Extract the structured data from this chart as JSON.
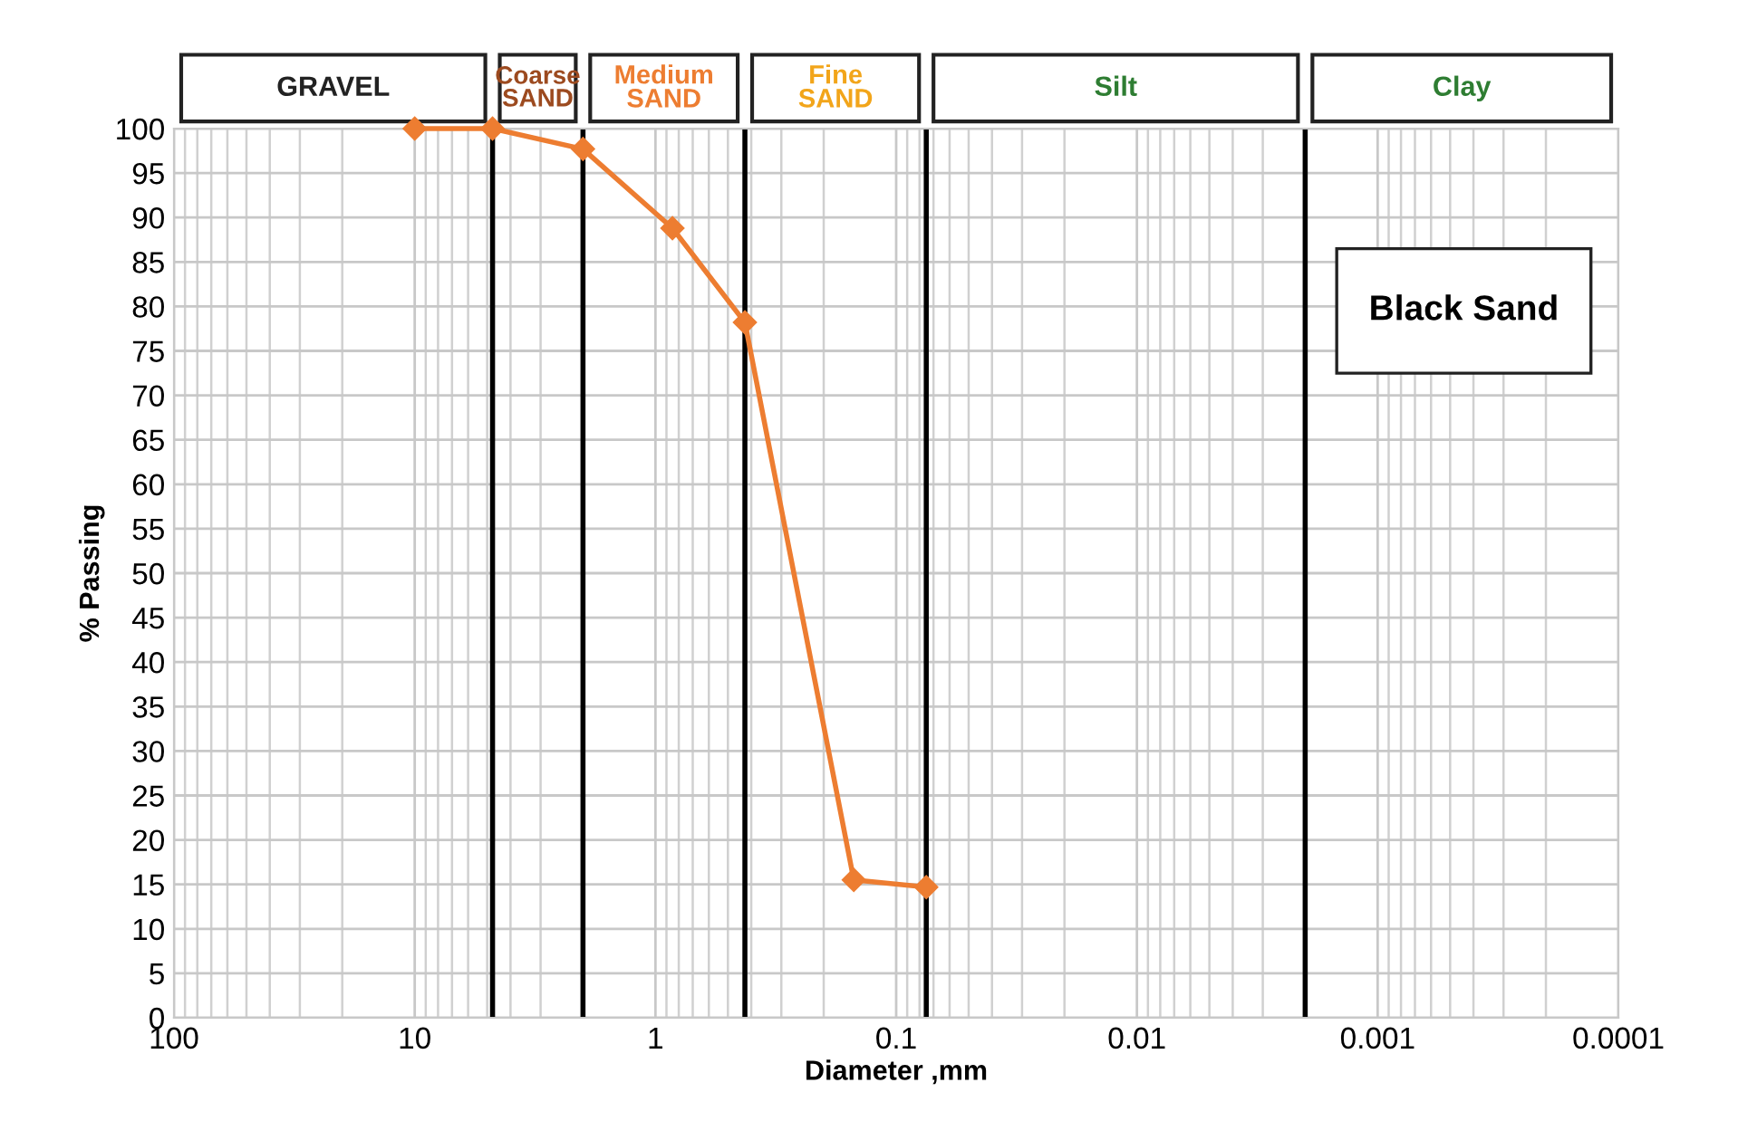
{
  "chart_data": {
    "type": "line",
    "xlabel": "Diameter ,mm",
    "ylabel": "% Passing",
    "x": [
      10,
      4.75,
      2.0,
      0.85,
      0.425,
      0.15,
      0.075
    ],
    "series": [
      {
        "color": "#ed7d31",
        "values": [
          100,
          100,
          97.7,
          88.8,
          78.2,
          15.5,
          14.7
        ]
      }
    ],
    "log": "x",
    "marker": "diamond",
    "line_style": "solid",
    "grid": true,
    "xlim": [
      100,
      0.0001
    ],
    "xticks": [
      100,
      10,
      1,
      0.1,
      0.01,
      0.001,
      0.0001
    ],
    "ylim": [
      0,
      100
    ],
    "yticks": [
      0,
      5,
      10,
      15,
      20,
      25,
      30,
      35,
      40,
      45,
      50,
      55,
      60,
      65,
      70,
      75,
      80,
      85,
      90,
      95,
      100
    ],
    "ref_lines": [
      {
        "axis": "x",
        "value": 4.75,
        "color": "#000000"
      },
      {
        "axis": "x",
        "value": 2.0,
        "color": "#000000"
      },
      {
        "axis": "x",
        "value": 0.425,
        "color": "#000000"
      },
      {
        "axis": "x",
        "value": 0.075,
        "color": "#000000"
      },
      {
        "axis": "x",
        "value": 0.002,
        "color": "#000000"
      }
    ],
    "annotations": [
      "GRAVEL",
      "Coarse\nSAND",
      "Medium\nSAND",
      "Fine\nSAND",
      "Silt",
      "Clay",
      "Black Sand"
    ]
  }
}
